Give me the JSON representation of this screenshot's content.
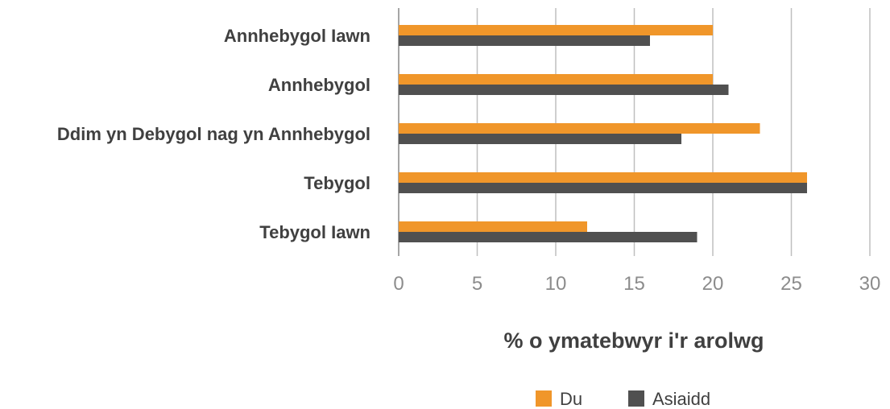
{
  "chart_data": {
    "type": "bar",
    "orientation": "horizontal",
    "categories": [
      "Annhebygol Iawn",
      "Annhebygol",
      "Ddim yn Debygol nag yn Annhebygol",
      "Tebygol",
      "Tebygol Iawn"
    ],
    "series": [
      {
        "name": "Du",
        "color": "#f0962a",
        "values": [
          20,
          20,
          23,
          26,
          12
        ]
      },
      {
        "name": "Asiaidd",
        "color": "#505050",
        "values": [
          16,
          21,
          18,
          26,
          19
        ]
      }
    ],
    "xlabel": "% o ymatebwyr i'r arolwg",
    "ylabel": "",
    "xlim": [
      0,
      30
    ],
    "xticks": [
      0,
      5,
      10,
      15,
      20,
      25,
      30
    ],
    "grid": "vertical",
    "legend": "bottom"
  }
}
